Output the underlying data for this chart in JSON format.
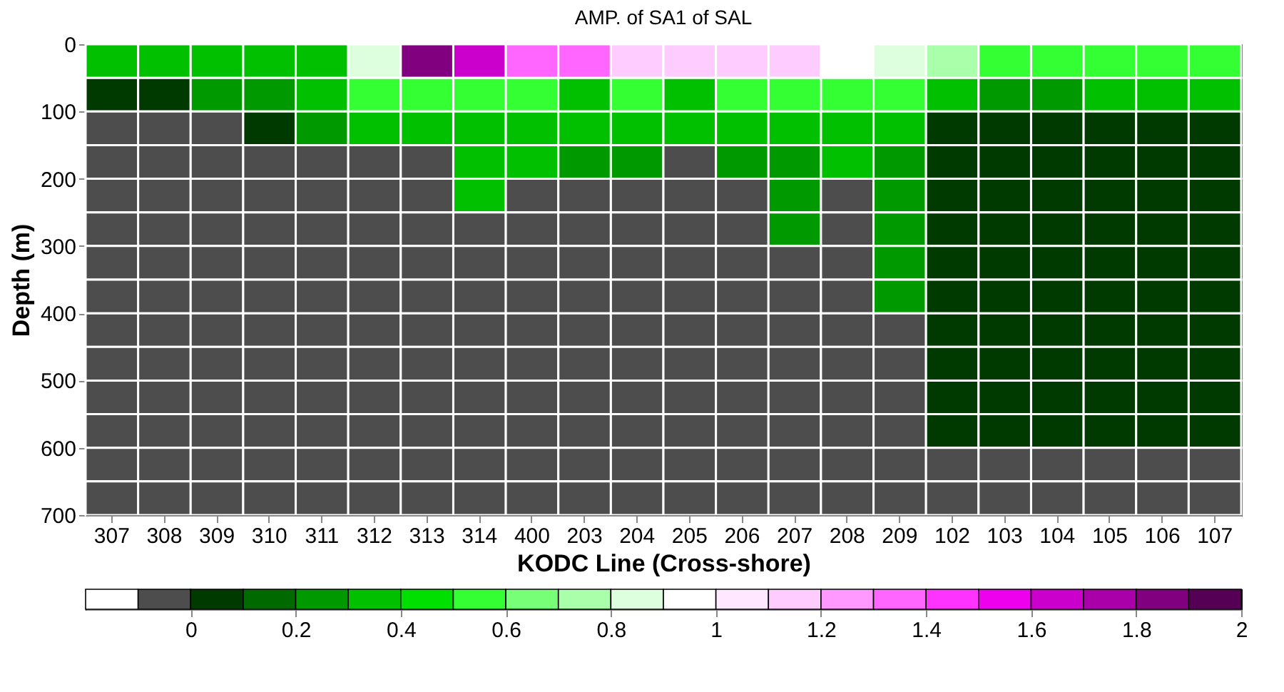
{
  "chart_data": {
    "type": "heatmap",
    "title": "AMP. of SA1 of SAL",
    "xlabel": "KODC Line (Cross-shore)",
    "ylabel": "Depth (m)",
    "categories": [
      "307",
      "308",
      "309",
      "310",
      "311",
      "312",
      "313",
      "314",
      "400",
      "203",
      "204",
      "205",
      "206",
      "207",
      "208",
      "209",
      "102",
      "103",
      "104",
      "105",
      "106",
      "107"
    ],
    "ylim": [
      700,
      0
    ],
    "yticks": [
      0,
      100,
      200,
      300,
      400,
      500,
      600,
      700
    ],
    "cells": [
      [
        0.3,
        0.3,
        0.4,
        0.4,
        0.4,
        0.8,
        1.9,
        1.6,
        1.3,
        1.4,
        1.2,
        1.1,
        1.2,
        1.1,
        1.0,
        0.9,
        0.7,
        0.6,
        0.6,
        0.6,
        0.6,
        0.5
      ],
      [
        0.1,
        0.1,
        0.2,
        0.2,
        0.3,
        0.5,
        0.6,
        0.5,
        0.5,
        0.4,
        0.5,
        0.4,
        0.5,
        0.5,
        0.5,
        0.5,
        0.3,
        0.2,
        0.2,
        0.3,
        0.3,
        0.3
      ],
      [
        -0.05,
        -0.05,
        -0.05,
        0.1,
        0.2,
        0.3,
        0.4,
        0.4,
        0.3,
        0.3,
        0.3,
        0.3,
        0.3,
        0.3,
        0.3,
        0.3,
        0.1,
        0.1,
        0.1,
        0.1,
        0.1,
        0.1
      ],
      [
        -0.05,
        -0.05,
        -0.05,
        -0.05,
        -0.05,
        -0.05,
        -0.05,
        0.3,
        0.3,
        0.2,
        0.2,
        -0.05,
        0.2,
        0.2,
        0.3,
        0.2,
        0.05,
        0.05,
        0.05,
        0.05,
        0.05,
        0.05
      ],
      [
        -0.05,
        -0.05,
        -0.05,
        -0.05,
        -0.05,
        -0.05,
        -0.05,
        0.3,
        -0.05,
        -0.05,
        -0.05,
        -0.05,
        -0.05,
        0.2,
        -0.05,
        0.2,
        0.05,
        0.05,
        0.05,
        0.05,
        0.05,
        0.05
      ],
      [
        -0.05,
        -0.05,
        -0.05,
        -0.05,
        -0.05,
        -0.05,
        -0.05,
        -0.05,
        -0.05,
        -0.05,
        -0.05,
        -0.05,
        -0.05,
        0.2,
        -0.05,
        0.2,
        0.05,
        0.05,
        0.05,
        0.05,
        0.05,
        0.05
      ],
      [
        -0.05,
        -0.05,
        -0.05,
        -0.05,
        -0.05,
        -0.05,
        -0.05,
        -0.05,
        -0.05,
        -0.05,
        -0.05,
        -0.05,
        -0.05,
        -0.05,
        -0.05,
        0.2,
        0.05,
        0.05,
        0.05,
        0.05,
        0.05,
        0.05
      ],
      [
        -0.05,
        -0.05,
        -0.05,
        -0.05,
        -0.05,
        -0.05,
        -0.05,
        -0.05,
        -0.05,
        -0.05,
        -0.05,
        -0.05,
        -0.05,
        -0.05,
        -0.05,
        0.2,
        0.05,
        0.05,
        0.05,
        0.05,
        0.05,
        0.05
      ],
      [
        -0.05,
        -0.05,
        -0.05,
        -0.05,
        -0.05,
        -0.05,
        -0.05,
        -0.05,
        -0.05,
        -0.05,
        -0.05,
        -0.05,
        -0.05,
        -0.05,
        -0.05,
        -0.05,
        0.05,
        0.05,
        0.05,
        0.05,
        0.05,
        0.05
      ],
      [
        -0.05,
        -0.05,
        -0.05,
        -0.05,
        -0.05,
        -0.05,
        -0.05,
        -0.05,
        -0.05,
        -0.05,
        -0.05,
        -0.05,
        -0.05,
        -0.05,
        -0.05,
        -0.05,
        0.05,
        0.05,
        0.05,
        0.05,
        0.05,
        0.05
      ],
      [
        -0.05,
        -0.05,
        -0.05,
        -0.05,
        -0.05,
        -0.05,
        -0.05,
        -0.05,
        -0.05,
        -0.05,
        -0.05,
        -0.05,
        -0.05,
        -0.05,
        -0.05,
        -0.05,
        0.05,
        0.05,
        0.05,
        0.05,
        0.05,
        0.05
      ],
      [
        -0.05,
        -0.05,
        -0.05,
        -0.05,
        -0.05,
        -0.05,
        -0.05,
        -0.05,
        -0.05,
        -0.05,
        -0.05,
        -0.05,
        -0.05,
        -0.05,
        -0.05,
        -0.05,
        0.05,
        0.05,
        0.05,
        0.05,
        0.05,
        0.05
      ],
      [
        -0.05,
        -0.05,
        -0.05,
        -0.05,
        -0.05,
        -0.05,
        -0.05,
        -0.05,
        -0.05,
        -0.05,
        -0.05,
        -0.05,
        -0.05,
        -0.05,
        -0.05,
        -0.05,
        -0.05,
        -0.05,
        -0.05,
        -0.05,
        -0.05,
        -0.05
      ],
      [
        -0.05,
        -0.05,
        -0.05,
        -0.05,
        -0.05,
        -0.05,
        -0.05,
        -0.05,
        -0.05,
        -0.05,
        -0.05,
        -0.05,
        -0.05,
        -0.05,
        -0.05,
        -0.05,
        -0.05,
        -0.05,
        -0.05,
        -0.05,
        -0.05,
        -0.05
      ]
    ],
    "clim": [
      -0.2,
      2
    ],
    "cticks": [
      0,
      0.2,
      0.4,
      0.6,
      0.8,
      1,
      1.2,
      1.4,
      1.6,
      1.8,
      2
    ]
  }
}
